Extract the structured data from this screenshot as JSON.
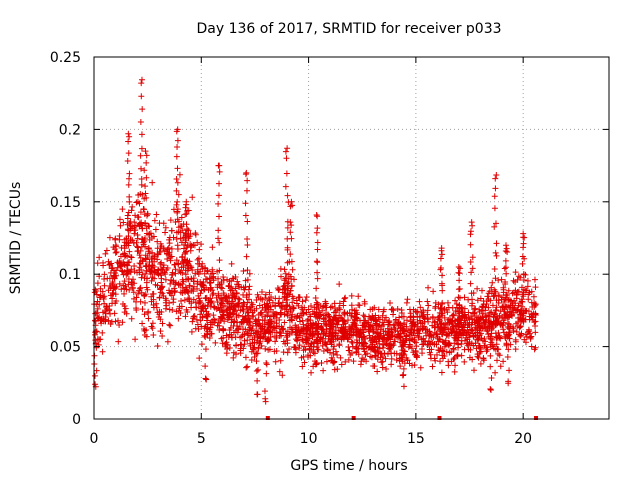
{
  "chart_data": {
    "type": "scatter",
    "title": "Day 136 of 2017, SRMTID for receiver p033",
    "xlabel": "GPS time / hours",
    "ylabel": "SRMTID / TECUs",
    "xlim": [
      0,
      24
    ],
    "ylim": [
      0,
      0.25
    ],
    "xticks": [
      0,
      5,
      10,
      15,
      20
    ],
    "yticks": [
      0,
      0.05,
      0.1,
      0.15,
      0.2,
      0.25
    ],
    "xtick_labels": [
      "0",
      "5",
      "10",
      "15",
      "20"
    ],
    "ytick_labels": [
      "0",
      "0.05",
      "0.1",
      "0.15",
      "0.2",
      "0.25"
    ],
    "grid": true,
    "marker": "plus",
    "color": "#e00000",
    "seed": 136,
    "baseline_markers": [
      {
        "x": 8.1,
        "y": 0
      },
      {
        "x": 12.1,
        "y": 0
      },
      {
        "x": 16.1,
        "y": 0
      },
      {
        "x": 20.6,
        "y": 0
      }
    ],
    "series": [
      {
        "name": "SRMTID",
        "x_range": [
          0,
          20.6
        ],
        "density_per_hour": 130,
        "envelope": [
          {
            "x": 0.0,
            "mean": 0.065,
            "spread": 0.025
          },
          {
            "x": 0.5,
            "mean": 0.085,
            "spread": 0.025
          },
          {
            "x": 1.0,
            "mean": 0.095,
            "spread": 0.03
          },
          {
            "x": 1.5,
            "mean": 0.11,
            "spread": 0.04
          },
          {
            "x": 2.0,
            "mean": 0.115,
            "spread": 0.045
          },
          {
            "x": 2.5,
            "mean": 0.1,
            "spread": 0.04
          },
          {
            "x": 3.0,
            "mean": 0.095,
            "spread": 0.035
          },
          {
            "x": 3.5,
            "mean": 0.105,
            "spread": 0.04
          },
          {
            "x": 4.0,
            "mean": 0.11,
            "spread": 0.04
          },
          {
            "x": 4.5,
            "mean": 0.1,
            "spread": 0.035
          },
          {
            "x": 5.0,
            "mean": 0.085,
            "spread": 0.03
          },
          {
            "x": 6.0,
            "mean": 0.075,
            "spread": 0.025
          },
          {
            "x": 7.0,
            "mean": 0.07,
            "spread": 0.025
          },
          {
            "x": 7.5,
            "mean": 0.06,
            "spread": 0.02
          },
          {
            "x": 8.0,
            "mean": 0.065,
            "spread": 0.02
          },
          {
            "x": 9.0,
            "mean": 0.075,
            "spread": 0.03
          },
          {
            "x": 10.0,
            "mean": 0.06,
            "spread": 0.022
          },
          {
            "x": 11.0,
            "mean": 0.06,
            "spread": 0.02
          },
          {
            "x": 12.0,
            "mean": 0.06,
            "spread": 0.018
          },
          {
            "x": 13.0,
            "mean": 0.058,
            "spread": 0.018
          },
          {
            "x": 14.0,
            "mean": 0.055,
            "spread": 0.018
          },
          {
            "x": 15.0,
            "mean": 0.06,
            "spread": 0.02
          },
          {
            "x": 16.0,
            "mean": 0.062,
            "spread": 0.022
          },
          {
            "x": 17.0,
            "mean": 0.06,
            "spread": 0.02
          },
          {
            "x": 18.0,
            "mean": 0.062,
            "spread": 0.022
          },
          {
            "x": 19.0,
            "mean": 0.07,
            "spread": 0.025
          },
          {
            "x": 20.0,
            "mean": 0.075,
            "spread": 0.025
          },
          {
            "x": 20.6,
            "mean": 0.07,
            "spread": 0.02
          }
        ],
        "peaks": [
          {
            "x": 1.6,
            "y": 0.197
          },
          {
            "x": 2.2,
            "y": 0.232
          },
          {
            "x": 2.4,
            "y": 0.185
          },
          {
            "x": 3.9,
            "y": 0.2
          },
          {
            "x": 4.3,
            "y": 0.15
          },
          {
            "x": 5.8,
            "y": 0.175
          },
          {
            "x": 7.1,
            "y": 0.17
          },
          {
            "x": 9.0,
            "y": 0.187
          },
          {
            "x": 9.2,
            "y": 0.15
          },
          {
            "x": 10.4,
            "y": 0.14
          },
          {
            "x": 16.2,
            "y": 0.118
          },
          {
            "x": 17.0,
            "y": 0.105
          },
          {
            "x": 17.6,
            "y": 0.136
          },
          {
            "x": 18.7,
            "y": 0.166
          },
          {
            "x": 19.2,
            "y": 0.12
          },
          {
            "x": 20.0,
            "y": 0.128
          }
        ],
        "lows": [
          {
            "x": 0.05,
            "y": 0.024
          },
          {
            "x": 5.2,
            "y": 0.028
          },
          {
            "x": 7.6,
            "y": 0.017
          },
          {
            "x": 8.0,
            "y": 0.012
          },
          {
            "x": 14.4,
            "y": 0.03
          },
          {
            "x": 18.5,
            "y": 0.02
          },
          {
            "x": 19.3,
            "y": 0.026
          }
        ]
      }
    ]
  }
}
